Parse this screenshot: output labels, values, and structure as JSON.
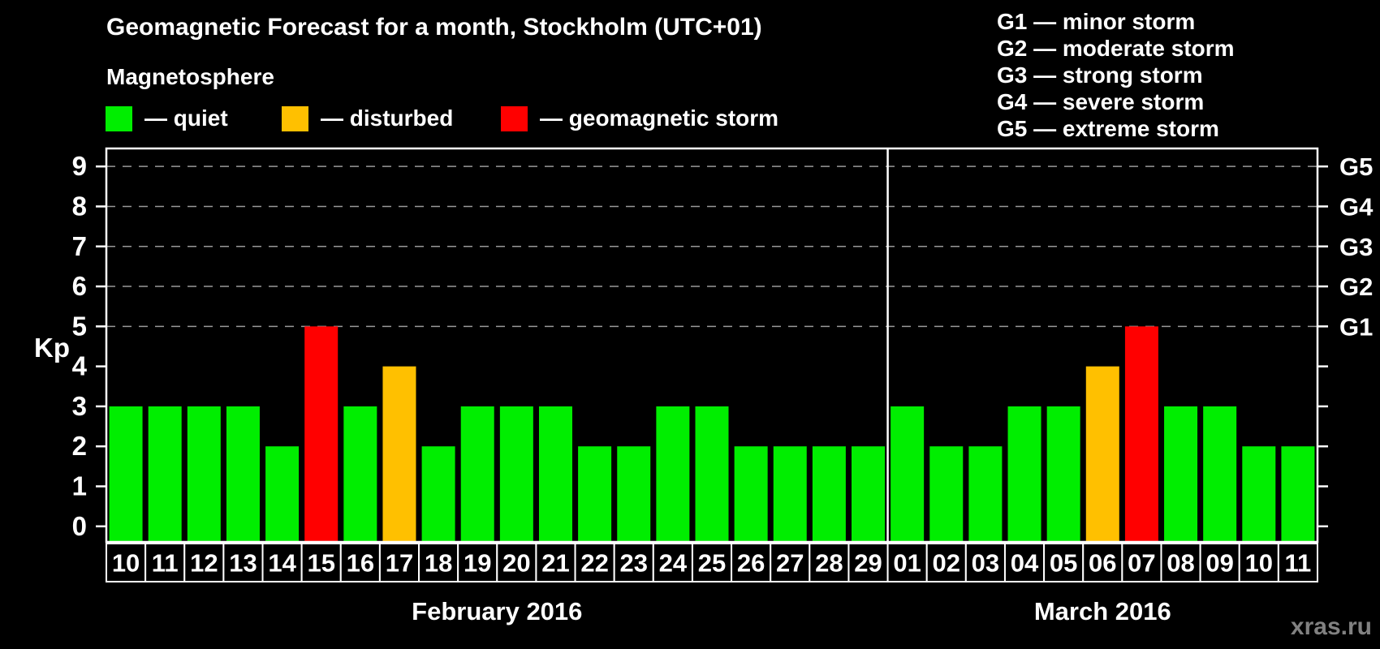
{
  "header": {
    "title": "Geomagnetic Forecast for a month, Stockholm (UTC+01)",
    "subtitle": "Magnetosphere"
  },
  "legend": {
    "items": [
      {
        "id": "quiet",
        "label": "— quiet",
        "color": "#00ee00"
      },
      {
        "id": "disturbed",
        "label": "— disturbed",
        "color": "#ffc000"
      },
      {
        "id": "storm",
        "label": "— geomagnetic storm",
        "color": "#ff0000"
      }
    ]
  },
  "g_scale_legend": {
    "lines": [
      "G1 — minor storm",
      "G2 — moderate storm",
      "G3 — strong storm",
      "G4 — severe storm",
      "G5 — extreme storm"
    ]
  },
  "watermark": "xras.ru",
  "chart_data": {
    "type": "bar",
    "title": "Geomagnetic Forecast for a month, Stockholm (UTC+01)",
    "ylabel": "Kp",
    "ylim": [
      0,
      9
    ],
    "yticks": [
      0,
      1,
      2,
      3,
      4,
      5,
      6,
      7,
      8,
      9
    ],
    "gridline_kp": [
      5,
      6,
      7,
      8,
      9
    ],
    "grid_color": "#999999",
    "axis_color": "#ffffff",
    "right_axis": [
      {
        "kp": 5,
        "label": "G1"
      },
      {
        "kp": 6,
        "label": "G2"
      },
      {
        "kp": 7,
        "label": "G3"
      },
      {
        "kp": 8,
        "label": "G4"
      },
      {
        "kp": 9,
        "label": "G5"
      }
    ],
    "status_colors": {
      "quiet": "#00ee00",
      "disturbed": "#ffc000",
      "storm": "#ff0000"
    },
    "months": [
      {
        "label": "February 2016",
        "days": [
          {
            "day": "10",
            "kp": 3,
            "status": "quiet"
          },
          {
            "day": "11",
            "kp": 3,
            "status": "quiet"
          },
          {
            "day": "12",
            "kp": 3,
            "status": "quiet"
          },
          {
            "day": "13",
            "kp": 3,
            "status": "quiet"
          },
          {
            "day": "14",
            "kp": 2,
            "status": "quiet"
          },
          {
            "day": "15",
            "kp": 5,
            "status": "storm"
          },
          {
            "day": "16",
            "kp": 3,
            "status": "quiet"
          },
          {
            "day": "17",
            "kp": 4,
            "status": "disturbed"
          },
          {
            "day": "18",
            "kp": 2,
            "status": "quiet"
          },
          {
            "day": "19",
            "kp": 3,
            "status": "quiet"
          },
          {
            "day": "20",
            "kp": 3,
            "status": "quiet"
          },
          {
            "day": "21",
            "kp": 3,
            "status": "quiet"
          },
          {
            "day": "22",
            "kp": 2,
            "status": "quiet"
          },
          {
            "day": "23",
            "kp": 2,
            "status": "quiet"
          },
          {
            "day": "24",
            "kp": 3,
            "status": "quiet"
          },
          {
            "day": "25",
            "kp": 3,
            "status": "quiet"
          },
          {
            "day": "26",
            "kp": 2,
            "status": "quiet"
          },
          {
            "day": "27",
            "kp": 2,
            "status": "quiet"
          },
          {
            "day": "28",
            "kp": 2,
            "status": "quiet"
          },
          {
            "day": "29",
            "kp": 2,
            "status": "quiet"
          }
        ]
      },
      {
        "label": "March 2016",
        "days": [
          {
            "day": "01",
            "kp": 3,
            "status": "quiet"
          },
          {
            "day": "02",
            "kp": 2,
            "status": "quiet"
          },
          {
            "day": "03",
            "kp": 2,
            "status": "quiet"
          },
          {
            "day": "04",
            "kp": 3,
            "status": "quiet"
          },
          {
            "day": "05",
            "kp": 3,
            "status": "quiet"
          },
          {
            "day": "06",
            "kp": 4,
            "status": "disturbed"
          },
          {
            "day": "07",
            "kp": 5,
            "status": "storm"
          },
          {
            "day": "08",
            "kp": 3,
            "status": "quiet"
          },
          {
            "day": "09",
            "kp": 3,
            "status": "quiet"
          },
          {
            "day": "10",
            "kp": 2,
            "status": "quiet"
          },
          {
            "day": "11",
            "kp": 2,
            "status": "quiet"
          }
        ]
      }
    ]
  }
}
